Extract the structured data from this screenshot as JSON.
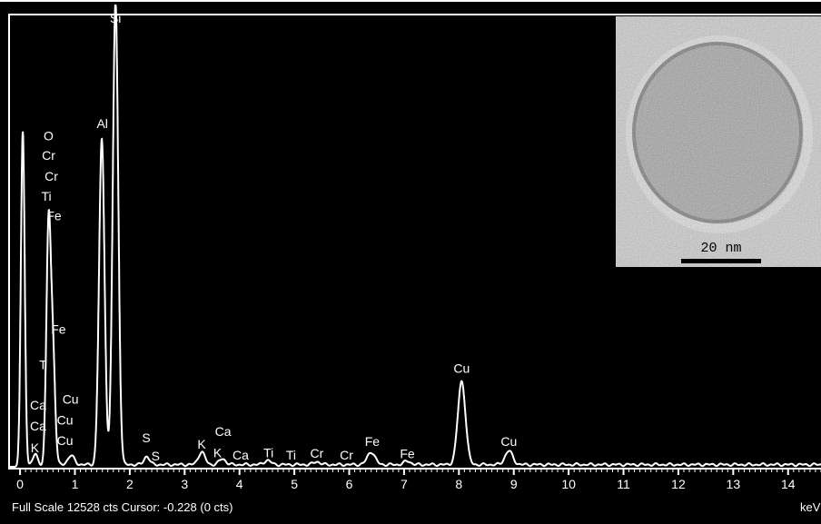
{
  "chart_data": {
    "type": "line",
    "xunit": "keV",
    "xlim": [
      -0.2,
      14.6
    ],
    "ylim": [
      0,
      12528
    ],
    "x_ticks": [
      "0",
      "1",
      "2",
      "3",
      "4",
      "5",
      "6",
      "7",
      "8",
      "9",
      "10",
      "11",
      "12",
      "13",
      "14"
    ],
    "status_text": "Full Scale 12528 cts Cursor: -0.228  (0 cts)",
    "axis_unit_label": "keV",
    "peaks": [
      {
        "x": 0.05,
        "y": 9200,
        "w": 0.035
      },
      {
        "x": 0.28,
        "y": 300,
        "w": 0.04
      },
      {
        "x": 0.52,
        "y": 6600,
        "w": 0.04
      },
      {
        "x": 0.6,
        "y": 3000,
        "w": 0.04
      },
      {
        "x": 0.93,
        "y": 250,
        "w": 0.06
      },
      {
        "x": 1.49,
        "y": 9000,
        "w": 0.05
      },
      {
        "x": 1.74,
        "y": 12800,
        "w": 0.05
      },
      {
        "x": 2.31,
        "y": 230,
        "w": 0.05
      },
      {
        "x": 3.31,
        "y": 350,
        "w": 0.06
      },
      {
        "x": 3.69,
        "y": 160,
        "w": 0.06
      },
      {
        "x": 4.51,
        "y": 120,
        "w": 0.06
      },
      {
        "x": 5.41,
        "y": 80,
        "w": 0.06
      },
      {
        "x": 6.4,
        "y": 350,
        "w": 0.07
      },
      {
        "x": 7.06,
        "y": 100,
        "w": 0.06
      },
      {
        "x": 8.05,
        "y": 2300,
        "w": 0.07
      },
      {
        "x": 8.91,
        "y": 380,
        "w": 0.07
      }
    ],
    "baseline": 60,
    "annotations": [
      {
        "text": "Si",
        "x": 1.74,
        "y": 12300
      },
      {
        "text": "Al",
        "x": 1.5,
        "y": 9380
      },
      {
        "text": "O",
        "x": 0.52,
        "y": 9050
      },
      {
        "text": "Cr",
        "x": 0.52,
        "y": 8500
      },
      {
        "text": "Cr",
        "x": 0.57,
        "y": 7920
      },
      {
        "text": "Ti",
        "x": 0.48,
        "y": 7370
      },
      {
        "text": "Fe",
        "x": 0.62,
        "y": 6830
      },
      {
        "text": "Fe",
        "x": 0.7,
        "y": 3680
      },
      {
        "text": "T",
        "x": 0.42,
        "y": 2700
      },
      {
        "text": "Ca",
        "x": 0.33,
        "y": 1580
      },
      {
        "text": "Ca",
        "x": 0.33,
        "y": 1000
      },
      {
        "text": "K",
        "x": 0.27,
        "y": 400
      },
      {
        "text": "Cu",
        "x": 0.92,
        "y": 1750
      },
      {
        "text": "Cu",
        "x": 0.82,
        "y": 1170
      },
      {
        "text": "Cu",
        "x": 0.82,
        "y": 600
      },
      {
        "text": "S",
        "x": 2.3,
        "y": 680
      },
      {
        "text": "S",
        "x": 2.47,
        "y": 180
      },
      {
        "text": "K",
        "x": 3.31,
        "y": 500
      },
      {
        "text": "Ca",
        "x": 3.7,
        "y": 850
      },
      {
        "text": "K",
        "x": 3.6,
        "y": 260
      },
      {
        "text": "Ca",
        "x": 4.02,
        "y": 200
      },
      {
        "text": "Ti",
        "x": 4.53,
        "y": 260
      },
      {
        "text": "Ti",
        "x": 4.94,
        "y": 200
      },
      {
        "text": "Cr",
        "x": 5.41,
        "y": 250
      },
      {
        "text": "Cr",
        "x": 5.95,
        "y": 200
      },
      {
        "text": "Fe",
        "x": 6.42,
        "y": 580
      },
      {
        "text": "Fe",
        "x": 7.06,
        "y": 240
      },
      {
        "text": "Cu",
        "x": 8.05,
        "y": 2600
      },
      {
        "text": "Cu",
        "x": 8.91,
        "y": 580
      }
    ]
  },
  "inset": {
    "scale_bar_label": "20 nm"
  }
}
